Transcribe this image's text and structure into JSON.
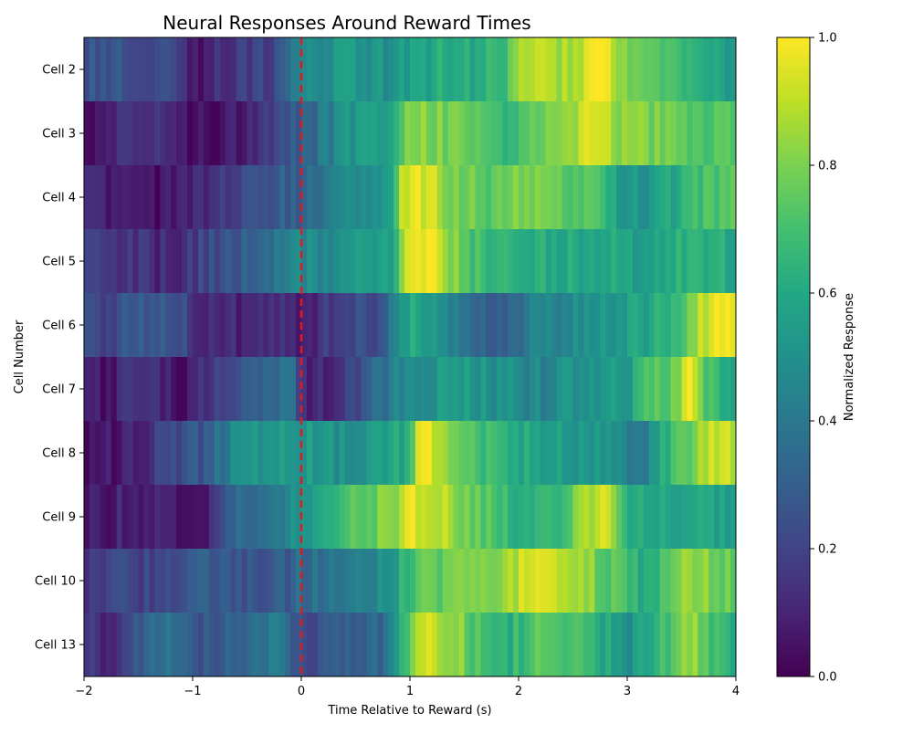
{
  "chart_data": {
    "type": "heatmap",
    "title": "Neural Responses Around Reward Times",
    "xlabel": "Time Relative to Reward (s)",
    "ylabel": "Cell Number",
    "xlim": [
      -2,
      4
    ],
    "xticks": [
      -2,
      -1,
      0,
      1,
      2,
      3,
      4
    ],
    "xtick_labels": [
      "−2",
      "−1",
      "0",
      "1",
      "2",
      "3",
      "4"
    ],
    "rows": [
      "Cell 2",
      "Cell 3",
      "Cell 4",
      "Cell 5",
      "Cell 6",
      "Cell 7",
      "Cell 8",
      "Cell 9",
      "Cell 10",
      "Cell 13"
    ],
    "reward_line": {
      "x": 0,
      "color": "#e31a1c",
      "style": "dashed"
    },
    "colorbar": {
      "label": "Normalized Response",
      "colormap": "viridis",
      "range": [
        0.0,
        1.0
      ],
      "ticks": [
        0.0,
        0.2,
        0.4,
        0.6,
        0.8,
        1.0
      ],
      "tick_labels": [
        "0.0",
        "0.2",
        "0.4",
        "0.6",
        "0.8",
        "1.0"
      ]
    },
    "segments": [
      {
        "cell": "Cell 2",
        "points": [
          [
            -2.0,
            0.28
          ],
          [
            -1.5,
            0.25
          ],
          [
            -1.2,
            0.22
          ],
          [
            -1.0,
            0.05
          ],
          [
            -0.6,
            0.18
          ],
          [
            -0.2,
            0.22
          ],
          [
            0.0,
            0.45
          ],
          [
            0.4,
            0.55
          ],
          [
            0.8,
            0.5
          ],
          [
            1.2,
            0.6
          ],
          [
            1.6,
            0.6
          ],
          [
            1.9,
            0.7
          ],
          [
            2.0,
            0.9
          ],
          [
            2.3,
            0.85
          ],
          [
            2.6,
            0.92
          ],
          [
            2.7,
            0.98
          ],
          [
            2.8,
            1.0
          ],
          [
            2.9,
            0.85
          ],
          [
            3.2,
            0.7
          ],
          [
            3.5,
            0.65
          ],
          [
            3.8,
            0.6
          ],
          [
            4.0,
            0.5
          ]
        ]
      },
      {
        "cell": "Cell 3",
        "points": [
          [
            -2.0,
            0.05
          ],
          [
            -1.7,
            0.12
          ],
          [
            -1.3,
            0.15
          ],
          [
            -1.0,
            0.05
          ],
          [
            -0.6,
            0.08
          ],
          [
            -0.3,
            0.2
          ],
          [
            0.0,
            0.3
          ],
          [
            0.4,
            0.5
          ],
          [
            0.8,
            0.6
          ],
          [
            1.0,
            0.85
          ],
          [
            1.3,
            0.8
          ],
          [
            1.6,
            0.75
          ],
          [
            1.9,
            0.65
          ],
          [
            2.2,
            0.8
          ],
          [
            2.5,
            0.85
          ],
          [
            2.65,
            1.0
          ],
          [
            2.9,
            0.85
          ],
          [
            3.2,
            0.8
          ],
          [
            3.6,
            0.75
          ],
          [
            4.0,
            0.7
          ]
        ]
      },
      {
        "cell": "Cell 4",
        "points": [
          [
            -2.0,
            0.1
          ],
          [
            -1.6,
            0.08
          ],
          [
            -1.3,
            0.05
          ],
          [
            -1.0,
            0.08
          ],
          [
            -0.6,
            0.2
          ],
          [
            -0.3,
            0.28
          ],
          [
            0.0,
            0.32
          ],
          [
            0.4,
            0.45
          ],
          [
            0.8,
            0.5
          ],
          [
            0.95,
            0.95
          ],
          [
            1.2,
            0.92
          ],
          [
            1.4,
            0.8
          ],
          [
            1.7,
            0.75
          ],
          [
            2.0,
            0.8
          ],
          [
            2.3,
            0.75
          ],
          [
            2.7,
            0.7
          ],
          [
            3.0,
            0.5
          ],
          [
            3.3,
            0.55
          ],
          [
            3.7,
            0.7
          ],
          [
            4.0,
            0.75
          ]
        ]
      },
      {
        "cell": "Cell 5",
        "points": [
          [
            -2.0,
            0.18
          ],
          [
            -1.6,
            0.15
          ],
          [
            -1.2,
            0.1
          ],
          [
            -0.9,
            0.2
          ],
          [
            -0.5,
            0.3
          ],
          [
            -0.2,
            0.4
          ],
          [
            0.0,
            0.45
          ],
          [
            0.4,
            0.5
          ],
          [
            0.8,
            0.55
          ],
          [
            1.0,
            0.95
          ],
          [
            1.2,
            1.0
          ],
          [
            1.4,
            0.8
          ],
          [
            1.7,
            0.65
          ],
          [
            2.0,
            0.6
          ],
          [
            2.4,
            0.62
          ],
          [
            2.8,
            0.6
          ],
          [
            3.2,
            0.55
          ],
          [
            3.6,
            0.65
          ],
          [
            4.0,
            0.6
          ]
        ]
      },
      {
        "cell": "Cell 6",
        "points": [
          [
            -2.0,
            0.2
          ],
          [
            -1.6,
            0.25
          ],
          [
            -1.2,
            0.28
          ],
          [
            -0.9,
            0.12
          ],
          [
            -0.5,
            0.1
          ],
          [
            -0.2,
            0.15
          ],
          [
            0.0,
            0.1
          ],
          [
            0.4,
            0.2
          ],
          [
            0.7,
            0.25
          ],
          [
            1.0,
            0.6
          ],
          [
            1.4,
            0.45
          ],
          [
            1.8,
            0.3
          ],
          [
            2.2,
            0.45
          ],
          [
            2.6,
            0.5
          ],
          [
            3.0,
            0.55
          ],
          [
            3.4,
            0.65
          ],
          [
            3.7,
            0.9
          ],
          [
            3.85,
            1.0
          ],
          [
            4.0,
            0.95
          ]
        ]
      },
      {
        "cell": "Cell 7",
        "points": [
          [
            -2.0,
            0.1
          ],
          [
            -1.8,
            0.05
          ],
          [
            -1.5,
            0.15
          ],
          [
            -1.1,
            0.05
          ],
          [
            -0.7,
            0.2
          ],
          [
            -0.3,
            0.35
          ],
          [
            -0.1,
            0.4
          ],
          [
            0.0,
            0.1
          ],
          [
            0.4,
            0.15
          ],
          [
            0.7,
            0.35
          ],
          [
            1.0,
            0.5
          ],
          [
            1.4,
            0.55
          ],
          [
            1.8,
            0.5
          ],
          [
            2.2,
            0.45
          ],
          [
            2.6,
            0.5
          ],
          [
            3.0,
            0.55
          ],
          [
            3.2,
            0.7
          ],
          [
            3.5,
            0.8
          ],
          [
            3.55,
            1.0
          ],
          [
            3.7,
            0.75
          ],
          [
            4.0,
            0.6
          ]
        ]
      },
      {
        "cell": "Cell 8",
        "points": [
          [
            -2.0,
            0.0
          ],
          [
            -1.6,
            0.1
          ],
          [
            -1.2,
            0.2
          ],
          [
            -0.9,
            0.28
          ],
          [
            -0.6,
            0.5
          ],
          [
            -0.3,
            0.55
          ],
          [
            0.0,
            0.55
          ],
          [
            0.3,
            0.5
          ],
          [
            0.8,
            0.55
          ],
          [
            1.0,
            0.65
          ],
          [
            1.1,
            1.0
          ],
          [
            1.3,
            0.9
          ],
          [
            1.6,
            0.7
          ],
          [
            2.0,
            0.6
          ],
          [
            2.4,
            0.55
          ],
          [
            2.8,
            0.5
          ],
          [
            3.1,
            0.35
          ],
          [
            3.3,
            0.6
          ],
          [
            3.6,
            0.8
          ],
          [
            3.85,
            0.95
          ],
          [
            4.0,
            0.85
          ]
        ]
      },
      {
        "cell": "Cell 9",
        "points": [
          [
            -2.0,
            0.05
          ],
          [
            -1.6,
            0.1
          ],
          [
            -1.2,
            0.08
          ],
          [
            -0.9,
            0.05
          ],
          [
            -0.6,
            0.35
          ],
          [
            -0.2,
            0.45
          ],
          [
            0.0,
            0.5
          ],
          [
            0.3,
            0.65
          ],
          [
            0.6,
            0.75
          ],
          [
            0.9,
            0.85
          ],
          [
            1.0,
            0.95
          ],
          [
            1.3,
            0.9
          ],
          [
            1.6,
            0.75
          ],
          [
            2.0,
            0.65
          ],
          [
            2.4,
            0.7
          ],
          [
            2.7,
            0.9
          ],
          [
            2.8,
            1.0
          ],
          [
            3.0,
            0.6
          ],
          [
            3.4,
            0.55
          ],
          [
            3.8,
            0.6
          ],
          [
            4.0,
            0.5
          ]
        ]
      },
      {
        "cell": "Cell 10",
        "points": [
          [
            -2.0,
            0.15
          ],
          [
            -1.6,
            0.2
          ],
          [
            -1.2,
            0.22
          ],
          [
            -0.9,
            0.28
          ],
          [
            -0.5,
            0.25
          ],
          [
            -0.1,
            0.3
          ],
          [
            0.0,
            0.35
          ],
          [
            0.4,
            0.4
          ],
          [
            0.8,
            0.5
          ],
          [
            1.0,
            0.7
          ],
          [
            1.4,
            0.8
          ],
          [
            1.8,
            0.75
          ],
          [
            2.0,
            0.9
          ],
          [
            2.3,
            0.95
          ],
          [
            2.6,
            0.85
          ],
          [
            2.9,
            0.7
          ],
          [
            3.2,
            0.6
          ],
          [
            3.5,
            0.85
          ],
          [
            3.8,
            0.8
          ],
          [
            4.0,
            0.75
          ]
        ]
      },
      {
        "cell": "Cell 13",
        "points": [
          [
            -2.0,
            0.2
          ],
          [
            -1.8,
            0.05
          ],
          [
            -1.5,
            0.3
          ],
          [
            -1.2,
            0.4
          ],
          [
            -0.9,
            0.25
          ],
          [
            -0.5,
            0.35
          ],
          [
            -0.2,
            0.45
          ],
          [
            0.0,
            0.2
          ],
          [
            0.4,
            0.3
          ],
          [
            0.8,
            0.35
          ],
          [
            1.1,
            0.95
          ],
          [
            1.4,
            0.85
          ],
          [
            1.8,
            0.6
          ],
          [
            2.2,
            0.75
          ],
          [
            2.6,
            0.7
          ],
          [
            3.0,
            0.5
          ],
          [
            3.3,
            0.65
          ],
          [
            3.6,
            0.85
          ],
          [
            3.8,
            0.7
          ],
          [
            4.0,
            0.6
          ]
        ]
      }
    ]
  }
}
